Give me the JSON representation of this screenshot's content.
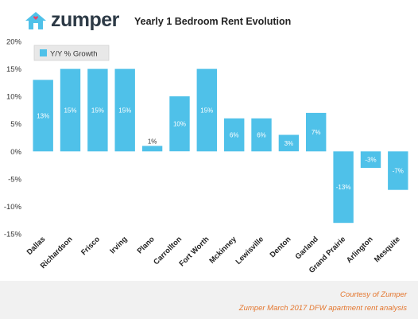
{
  "header": {
    "brand": "zumper",
    "title": "Yearly 1 Bedroom Rent Evolution"
  },
  "footer": {
    "credit_line1": "Courtesy of Zumper",
    "credit_line2": "Zumper March 2017 DFW apartment rent analysis"
  },
  "colors": {
    "bar": "#4fc1e9",
    "brand_heart": "#e8446b",
    "credit_text": "#e4762e"
  },
  "chart_data": {
    "type": "bar",
    "title": "Yearly 1 Bedroom Rent Evolution",
    "categories": [
      "Dallas",
      "Richardson",
      "Frisco",
      "Irving",
      "Plano",
      "Carrollton",
      "Fort Worth",
      "Mckinney",
      "Lewisville",
      "Denton",
      "Garland",
      "Grand Prairie",
      "Arlington",
      "Mesquite"
    ],
    "series": [
      {
        "name": "Y/Y % Growth",
        "values": [
          13,
          15,
          15,
          15,
          1,
          10,
          15,
          6,
          6,
          3,
          7,
          -13,
          -3,
          -7
        ],
        "labels": [
          "13%",
          "15%",
          "15%",
          "15%",
          "1%",
          "10%",
          "15%",
          "6%",
          "6%",
          "3%",
          "7%",
          "-13%",
          "-3%",
          "-7%"
        ]
      }
    ],
    "ylim": [
      -15,
      20
    ],
    "yticks": [
      20,
      15,
      10,
      5,
      0,
      -5,
      -10,
      -15
    ],
    "ytick_labels": [
      "20%",
      "15%",
      "10%",
      "5%",
      "0%",
      "-5%",
      "-10%",
      "-15%"
    ],
    "grid": false,
    "legend": "top-left"
  }
}
